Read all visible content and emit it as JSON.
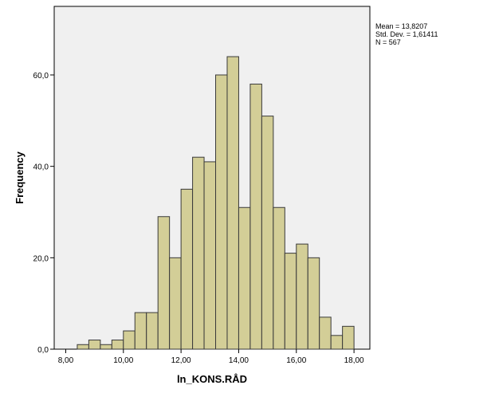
{
  "chart_data": {
    "type": "bar",
    "subtype": "histogram",
    "xlabel": "ln_KONS.RÅD",
    "ylabel": "Frequency",
    "xlim": [
      7.6,
      18.55
    ],
    "ylim": [
      0,
      75
    ],
    "xticks": [
      8,
      10,
      12,
      14,
      16,
      18
    ],
    "xtick_labels": [
      "8,00",
      "10,00",
      "12,00",
      "14,00",
      "16,00",
      "18,00"
    ],
    "yticks": [
      0,
      20,
      40,
      60
    ],
    "ytick_labels": [
      "0,0",
      "20,0",
      "40,0",
      "60,0"
    ],
    "bin_start": 8.4,
    "bin_width": 0.4,
    "values": [
      1,
      2,
      1,
      2,
      4,
      8,
      8,
      29,
      20,
      35,
      42,
      41,
      60,
      64,
      31,
      58,
      51,
      31,
      21,
      23,
      20,
      7,
      3,
      5
    ],
    "plot_background": "#f0f0f0",
    "bar_fill": "#d3ce97",
    "bar_stroke": "#3a3a3a",
    "grid": false,
    "legend": "none",
    "stats": {
      "mean": "Mean = 13,8207",
      "std": "Std. Dev. = 1,61411",
      "n": "N = 567"
    }
  }
}
